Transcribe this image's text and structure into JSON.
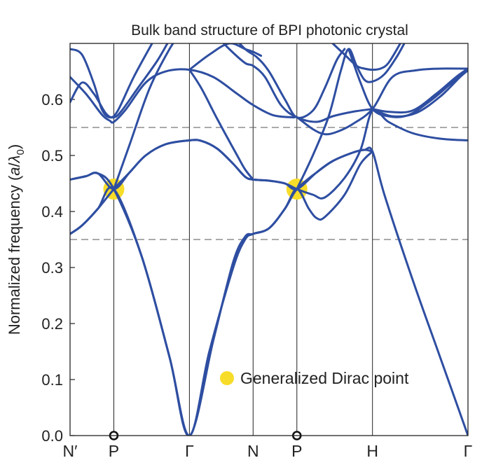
{
  "chart_data": {
    "type": "line",
    "title": "Bulk band structure of BPI photonic crystal",
    "xlabel": "",
    "ylabel": "Normalized frequency (a/λ₀)",
    "ylabel_parts": {
      "prefix": "Normalized frequency (",
      "var": "a",
      "slash": "/",
      "lambda": "λ",
      "sub": "0",
      "suffix": ")"
    },
    "ylim": [
      0,
      0.7
    ],
    "yticks": [
      "0.0",
      "0.1",
      "0.2",
      "0.3",
      "0.4",
      "0.5",
      "0.6"
    ],
    "ytick_values": [
      0.0,
      0.1,
      0.2,
      0.3,
      0.4,
      0.5,
      0.6
    ],
    "xlim": [
      0,
      1
    ],
    "high_symmetry_points": [
      {
        "label": "N′",
        "x": 0.0
      },
      {
        "label": "P",
        "x": 0.11
      },
      {
        "label": "Γ",
        "x": 0.3
      },
      {
        "label": "N",
        "x": 0.46
      },
      {
        "label": "P",
        "x": 0.57
      },
      {
        "label": "H",
        "x": 0.76
      },
      {
        "label": "Γ",
        "x": 1.0
      }
    ],
    "band_gap_lines": [
      0.35,
      0.55
    ],
    "band_color": "#2e4ea1",
    "dirac_color": "#f7dc2a",
    "dirac_points": [
      {
        "x": 0.11,
        "y": 0.44
      },
      {
        "x": 0.57,
        "y": 0.44
      }
    ],
    "marker_points": [
      {
        "x": 0.11,
        "y": 0.0
      },
      {
        "x": 0.57,
        "y": 0.0
      }
    ],
    "legend": {
      "label": "Generalized Dirac point",
      "position": "lower-center"
    },
    "series": [
      {
        "name": "band-1",
        "points": [
          [
            0.0,
            0.36
          ],
          [
            0.03,
            0.375
          ],
          [
            0.07,
            0.405
          ],
          [
            0.11,
            0.44
          ],
          [
            0.18,
            0.32
          ],
          [
            0.25,
            0.14
          ],
          [
            0.3,
            0.0
          ],
          [
            0.36,
            0.17
          ],
          [
            0.41,
            0.31
          ],
          [
            0.44,
            0.355
          ],
          [
            0.46,
            0.36
          ],
          [
            0.5,
            0.37
          ],
          [
            0.54,
            0.405
          ],
          [
            0.57,
            0.44
          ],
          [
            0.62,
            0.47
          ],
          [
            0.66,
            0.49
          ],
          [
            0.71,
            0.505
          ],
          [
            0.74,
            0.51
          ],
          [
            0.76,
            0.507
          ],
          [
            0.79,
            0.43
          ],
          [
            0.86,
            0.28
          ],
          [
            0.93,
            0.14
          ],
          [
            1.0,
            0.0
          ]
        ]
      },
      {
        "name": "band-2",
        "points": [
          [
            0.0,
            0.457
          ],
          [
            0.04,
            0.463
          ],
          [
            0.07,
            0.468
          ],
          [
            0.11,
            0.44
          ],
          [
            0.18,
            0.32
          ],
          [
            0.25,
            0.14
          ],
          [
            0.3,
            0.0
          ],
          [
            0.35,
            0.15
          ],
          [
            0.41,
            0.3
          ],
          [
            0.44,
            0.35
          ],
          [
            0.46,
            0.36
          ],
          [
            0.5,
            0.37
          ],
          [
            0.54,
            0.405
          ],
          [
            0.57,
            0.44
          ],
          [
            0.6,
            0.405
          ],
          [
            0.62,
            0.388
          ],
          [
            0.64,
            0.39
          ],
          [
            0.69,
            0.43
          ],
          [
            0.73,
            0.485
          ],
          [
            0.76,
            0.507
          ]
        ]
      },
      {
        "name": "band-3",
        "points": [
          [
            0.0,
            0.457
          ],
          [
            0.04,
            0.463
          ],
          [
            0.07,
            0.468
          ],
          [
            0.11,
            0.44
          ],
          [
            0.15,
            0.47
          ],
          [
            0.19,
            0.5
          ],
          [
            0.24,
            0.52
          ],
          [
            0.3,
            0.527
          ],
          [
            0.33,
            0.526
          ],
          [
            0.37,
            0.512
          ],
          [
            0.41,
            0.485
          ],
          [
            0.44,
            0.462
          ],
          [
            0.46,
            0.457
          ],
          [
            0.5,
            0.455
          ],
          [
            0.54,
            0.45
          ],
          [
            0.57,
            0.44
          ],
          [
            0.61,
            0.43
          ],
          [
            0.64,
            0.425
          ],
          [
            0.69,
            0.46
          ],
          [
            0.73,
            0.51
          ],
          [
            0.76,
            0.58
          ],
          [
            0.8,
            0.56
          ],
          [
            0.86,
            0.54
          ],
          [
            0.93,
            0.53
          ],
          [
            1.0,
            0.527
          ]
        ]
      },
      {
        "name": "band-4",
        "points": [
          [
            0.0,
            0.36
          ],
          [
            0.03,
            0.375
          ],
          [
            0.07,
            0.405
          ],
          [
            0.11,
            0.44
          ],
          [
            0.15,
            0.47
          ],
          [
            0.19,
            0.5
          ],
          [
            0.24,
            0.52
          ],
          [
            0.3,
            0.527
          ],
          [
            0.33,
            0.526
          ],
          [
            0.37,
            0.512
          ],
          [
            0.41,
            0.485
          ],
          [
            0.44,
            0.462
          ],
          [
            0.46,
            0.457
          ],
          [
            0.5,
            0.455
          ],
          [
            0.54,
            0.45
          ],
          [
            0.57,
            0.44
          ],
          [
            0.62,
            0.47
          ],
          [
            0.66,
            0.49
          ],
          [
            0.71,
            0.505
          ],
          [
            0.74,
            0.51
          ],
          [
            0.76,
            0.507
          ]
        ]
      },
      {
        "name": "band-5",
        "points": [
          [
            0.0,
            0.64
          ],
          [
            0.04,
            0.61
          ],
          [
            0.08,
            0.573
          ],
          [
            0.1,
            0.562
          ],
          [
            0.11,
            0.56
          ],
          [
            0.14,
            0.582
          ],
          [
            0.19,
            0.63
          ],
          [
            0.24,
            0.65
          ],
          [
            0.3,
            0.653
          ],
          [
            0.36,
            0.64
          ],
          [
            0.42,
            0.61
          ],
          [
            0.46,
            0.59
          ],
          [
            0.51,
            0.572
          ],
          [
            0.56,
            0.568
          ],
          [
            0.57,
            0.568
          ],
          [
            0.61,
            0.547
          ],
          [
            0.64,
            0.538
          ],
          [
            0.67,
            0.542
          ],
          [
            0.71,
            0.556
          ],
          [
            0.76,
            0.583
          ],
          [
            0.81,
            0.64
          ],
          [
            0.87,
            0.652
          ],
          [
            0.93,
            0.655
          ],
          [
            1.0,
            0.655
          ]
        ]
      },
      {
        "name": "band-6",
        "points": [
          [
            0.0,
            0.595
          ],
          [
            0.03,
            0.63
          ],
          [
            0.06,
            0.61
          ],
          [
            0.09,
            0.575
          ],
          [
            0.11,
            0.568
          ],
          [
            0.13,
            0.58
          ],
          [
            0.17,
            0.62
          ],
          [
            0.22,
            0.67
          ],
          [
            0.26,
            0.72
          ]
        ]
      },
      {
        "name": "band-7",
        "points": [
          [
            0.0,
            0.69
          ],
          [
            0.03,
            0.68
          ],
          [
            0.06,
            0.628
          ],
          [
            0.08,
            0.582
          ],
          [
            0.1,
            0.568
          ],
          [
            0.12,
            0.58
          ],
          [
            0.16,
            0.64
          ],
          [
            0.21,
            0.705
          ]
        ]
      },
      {
        "name": "band-8",
        "points": [
          [
            0.11,
            0.44
          ],
          [
            0.15,
            0.52
          ],
          [
            0.2,
            0.62
          ],
          [
            0.25,
            0.69
          ],
          [
            0.28,
            0.72
          ]
        ]
      },
      {
        "name": "band-9",
        "points": [
          [
            0.3,
            0.653
          ],
          [
            0.35,
            0.68
          ],
          [
            0.4,
            0.7
          ],
          [
            0.44,
            0.69
          ],
          [
            0.46,
            0.685
          ],
          [
            0.48,
            0.678
          ]
        ]
      },
      {
        "name": "band-10",
        "points": [
          [
            0.3,
            0.653
          ],
          [
            0.33,
            0.62
          ],
          [
            0.37,
            0.565
          ],
          [
            0.42,
            0.5
          ],
          [
            0.44,
            0.475
          ],
          [
            0.46,
            0.457
          ]
        ]
      },
      {
        "name": "band-11",
        "points": [
          [
            0.36,
            0.72
          ],
          [
            0.4,
            0.69
          ],
          [
            0.44,
            0.665
          ],
          [
            0.46,
            0.66
          ],
          [
            0.49,
            0.64
          ],
          [
            0.53,
            0.59
          ],
          [
            0.57,
            0.568
          ],
          [
            0.62,
            0.56
          ],
          [
            0.66,
            0.57
          ],
          [
            0.71,
            0.578
          ],
          [
            0.76,
            0.583
          ]
        ]
      },
      {
        "name": "band-12",
        "points": [
          [
            0.4,
            0.72
          ],
          [
            0.44,
            0.69
          ],
          [
            0.47,
            0.675
          ],
          [
            0.5,
            0.65
          ],
          [
            0.54,
            0.6
          ],
          [
            0.57,
            0.568
          ],
          [
            0.61,
            0.58
          ],
          [
            0.64,
            0.62
          ],
          [
            0.67,
            0.67
          ],
          [
            0.69,
            0.69
          ]
        ]
      },
      {
        "name": "band-13",
        "points": [
          [
            0.57,
            0.44
          ],
          [
            0.61,
            0.5
          ],
          [
            0.65,
            0.57
          ],
          [
            0.68,
            0.65
          ],
          [
            0.7,
            0.69
          ],
          [
            0.72,
            0.66
          ],
          [
            0.74,
            0.635
          ],
          [
            0.76,
            0.632
          ],
          [
            0.79,
            0.645
          ],
          [
            0.82,
            0.675
          ],
          [
            0.84,
            0.7
          ]
        ]
      },
      {
        "name": "band-14",
        "points": [
          [
            0.66,
            0.7
          ],
          [
            0.69,
            0.68
          ],
          [
            0.72,
            0.66
          ],
          [
            0.74,
            0.655
          ],
          [
            0.76,
            0.653
          ],
          [
            0.78,
            0.655
          ],
          [
            0.8,
            0.665
          ],
          [
            0.83,
            0.7
          ]
        ]
      },
      {
        "name": "band-15",
        "points": [
          [
            0.7,
            0.69
          ],
          [
            0.73,
            0.63
          ],
          [
            0.76,
            0.583
          ],
          [
            0.8,
            0.57
          ],
          [
            0.85,
            0.572
          ],
          [
            0.91,
            0.6
          ],
          [
            0.96,
            0.63
          ],
          [
            1.0,
            0.652
          ]
        ]
      },
      {
        "name": "band-16",
        "points": [
          [
            0.76,
            0.583
          ],
          [
            0.8,
            0.578
          ],
          [
            0.86,
            0.58
          ],
          [
            0.92,
            0.61
          ],
          [
            0.97,
            0.64
          ],
          [
            1.0,
            0.655
          ]
        ]
      },
      {
        "name": "band-17",
        "points": [
          [
            0.76,
            0.583
          ],
          [
            0.81,
            0.57
          ],
          [
            0.87,
            0.576
          ],
          [
            0.93,
            0.605
          ],
          [
            0.98,
            0.64
          ],
          [
            1.0,
            0.652
          ]
        ]
      }
    ]
  }
}
